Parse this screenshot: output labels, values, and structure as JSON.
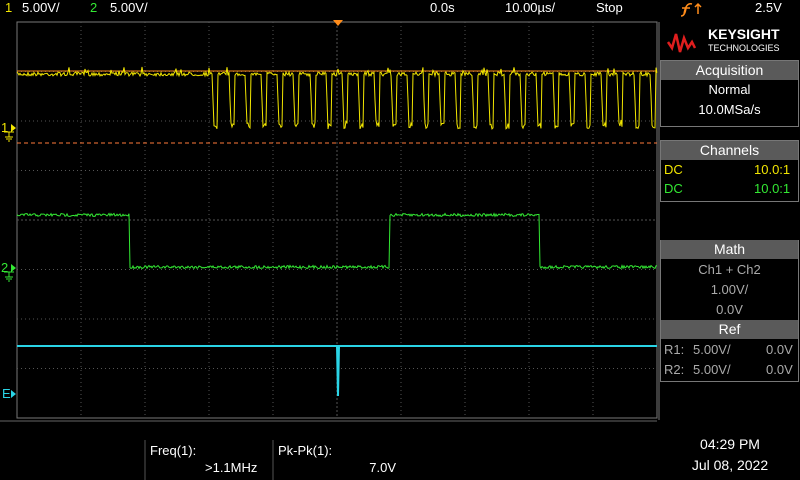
{
  "header": {
    "ch1_label": "1",
    "ch1_scale": "5.00V/",
    "ch2_label": "2",
    "ch2_scale": "5.00V/",
    "time_offset": "0.0s",
    "time_scale": "10.00µs/",
    "run_state": "Stop",
    "trigger_level": "2.5V"
  },
  "markers": {
    "ch1": "1",
    "ch2": "2",
    "ext": "E"
  },
  "sidebar": {
    "brand": "KEYSIGHT",
    "brand_sub": "TECHNOLOGIES",
    "acquisition": {
      "title": "Acquisition",
      "mode": "Normal",
      "rate": "10.0MSa/s"
    },
    "channels": {
      "title": "Channels",
      "rows": [
        [
          "DC",
          "10.0:1"
        ],
        [
          "DC",
          "10.0:1"
        ]
      ]
    },
    "math": {
      "title": "Math",
      "expr": "Ch1 + Ch2",
      "scale": "1.00V/",
      "offset": "0.0V"
    },
    "ref": {
      "title": "Ref",
      "rows": [
        [
          "R1:",
          "5.00V/",
          "0.0V"
        ],
        [
          "R2:",
          "5.00V/",
          "0.0V"
        ]
      ]
    }
  },
  "measurements": [
    {
      "label": "Freq(1):",
      "value": ">1.1MHz"
    },
    {
      "label": "Pk-Pk(1):",
      "value": "7.0V"
    }
  ],
  "clock": {
    "time": "04:29 PM",
    "date": "Jul 08, 2022"
  }
}
